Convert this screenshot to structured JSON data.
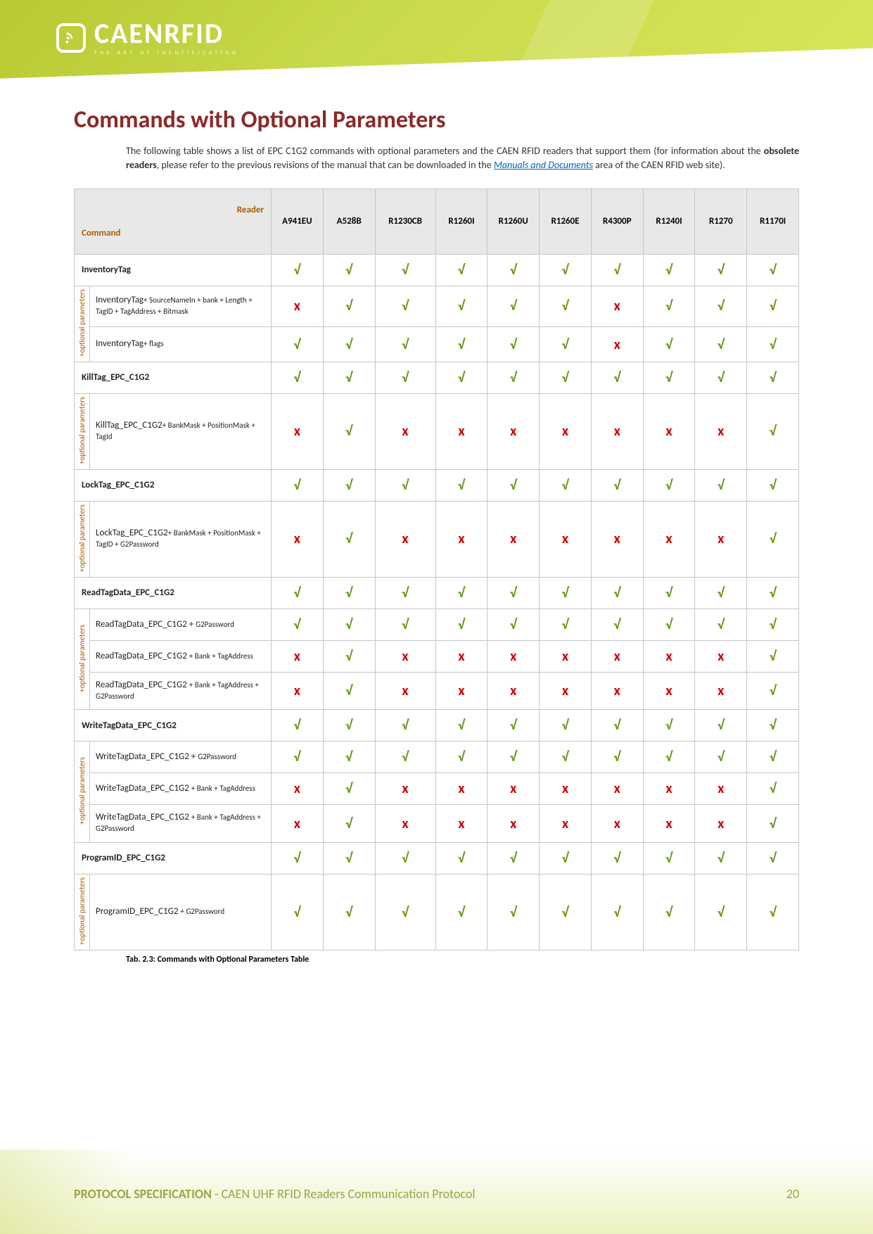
{
  "brand": {
    "name": "CAENRFID",
    "tagline": "THE ART OF IDENTIFICATION"
  },
  "heading": "Commands with Optional Parameters",
  "intro": {
    "pre": "The following table shows a list of EPC C1G2 commands with optional parameters and the CAEN RFID readers that support them (for information about the ",
    "bold": "obsolete readers",
    "mid": ", please refer to the previous revisions of the manual that can be downloaded in the ",
    "link": "Manuals and Documents",
    "post": " area of the CAEN RFID web site)."
  },
  "table": {
    "readerLabel": "Reader",
    "commandLabel": "Command",
    "optLabel": "+optional parameters",
    "optLabelShort": "+optional\nparameters",
    "cols": [
      "A941EU",
      "A528B",
      "R1230CB",
      "R1260I",
      "R1260U",
      "R1260E",
      "R4300P",
      "R1240I",
      "R1270",
      "R1170I"
    ],
    "check": "√",
    "cross": "x",
    "groups": [
      {
        "main": "InventoryTag",
        "mainVals": [
          "v",
          "v",
          "v",
          "v",
          "v",
          "v",
          "v",
          "v",
          "v",
          "v"
        ],
        "subs": [
          {
            "label": "InventoryTag",
            "opt": "+ SourceNameIn + bank + Length + TagID + TagAddress + Bitmask",
            "vals": [
              "x",
              "v",
              "v",
              "v",
              "v",
              "v",
              "x",
              "v",
              "v",
              "v"
            ]
          },
          {
            "label": "InventoryTag",
            "opt": "+ flags",
            "vals": [
              "v",
              "v",
              "v",
              "v",
              "v",
              "v",
              "x",
              "v",
              "v",
              "v"
            ]
          }
        ]
      },
      {
        "main": "KillTag_EPC_C1G2",
        "mainVals": [
          "v",
          "v",
          "v",
          "v",
          "v",
          "v",
          "v",
          "v",
          "v",
          "v"
        ],
        "subs": [
          {
            "label": "KillTag_EPC_C1G2",
            "opt": "+ BankMask + PositionMask + TagId",
            "vals": [
              "x",
              "v",
              "x",
              "x",
              "x",
              "x",
              "x",
              "x",
              "x",
              "v"
            ],
            "tall": true
          }
        ]
      },
      {
        "main": "LockTag_EPC_C1G2",
        "mainVals": [
          "v",
          "v",
          "v",
          "v",
          "v",
          "v",
          "v",
          "v",
          "v",
          "v"
        ],
        "subs": [
          {
            "label": "LockTag_EPC_C1G2",
            "opt": "+ BankMask + PositionMask + TagID + G2Password",
            "vals": [
              "x",
              "v",
              "x",
              "x",
              "x",
              "x",
              "x",
              "x",
              "x",
              "v"
            ],
            "tall": true
          }
        ]
      },
      {
        "main": "ReadTagData_EPC_C1G2",
        "mainVals": [
          "v",
          "v",
          "v",
          "v",
          "v",
          "v",
          "v",
          "v",
          "v",
          "v"
        ],
        "subs": [
          {
            "label": "ReadTagData_EPC_C1G2 + ",
            "opt": "G2Password",
            "vals": [
              "v",
              "v",
              "v",
              "v",
              "v",
              "v",
              "v",
              "v",
              "v",
              "v"
            ]
          },
          {
            "label": "ReadTagData_EPC_C1G2 ",
            "opt": "+ Bank + TagAddress",
            "vals": [
              "x",
              "v",
              "x",
              "x",
              "x",
              "x",
              "x",
              "x",
              "x",
              "v"
            ]
          },
          {
            "label": "ReadTagData_EPC_C1G2 ",
            "opt": "+ Bank + TagAddress + G2Password",
            "vals": [
              "x",
              "v",
              "x",
              "x",
              "x",
              "x",
              "x",
              "x",
              "x",
              "v"
            ]
          }
        ]
      },
      {
        "main": "WriteTagData_EPC_C1G2",
        "mainVals": [
          "v",
          "v",
          "v",
          "v",
          "v",
          "v",
          "v",
          "v",
          "v",
          "v"
        ],
        "subs": [
          {
            "label": "WriteTagData_EPC_C1G2 + ",
            "opt": "G2Password",
            "vals": [
              "v",
              "v",
              "v",
              "v",
              "v",
              "v",
              "v",
              "v",
              "v",
              "v"
            ]
          },
          {
            "label": "WriteTagData_EPC_C1G2 ",
            "opt": "+ Bank + TagAddress",
            "vals": [
              "x",
              "v",
              "x",
              "x",
              "x",
              "x",
              "x",
              "x",
              "x",
              "v"
            ]
          },
          {
            "label": "WriteTagData_EPC_C1G2 ",
            "opt": "+ Bank + TagAddress + G2Password",
            "vals": [
              "x",
              "v",
              "x",
              "x",
              "x",
              "x",
              "x",
              "x",
              "x",
              "v"
            ]
          }
        ]
      },
      {
        "main": "ProgramID_EPC_C1G2",
        "mainVals": [
          "v",
          "v",
          "v",
          "v",
          "v",
          "v",
          "v",
          "v",
          "v",
          "v"
        ],
        "subs": [
          {
            "label": "ProgramID_EPC_C1G2 ",
            "opt": "+ G2Password",
            "vals": [
              "v",
              "v",
              "v",
              "v",
              "v",
              "v",
              "v",
              "v",
              "v",
              "v"
            ],
            "tall": true
          }
        ]
      }
    ]
  },
  "caption": "Tab. 2.3: Commands with Optional Parameters Table",
  "footer": {
    "title": "PROTOCOL SPECIFICATION",
    "sub": " - CAEN UHF RFID Readers Communication Protocol",
    "page": "20"
  },
  "colors": {
    "accent": "#b8c932",
    "heading": "#8a2a2a",
    "orange": "#a85c00",
    "green": "#6b9a1d",
    "red": "#cc0000",
    "headerBg": "#e8e8e8",
    "border": "#c6c6c6"
  }
}
